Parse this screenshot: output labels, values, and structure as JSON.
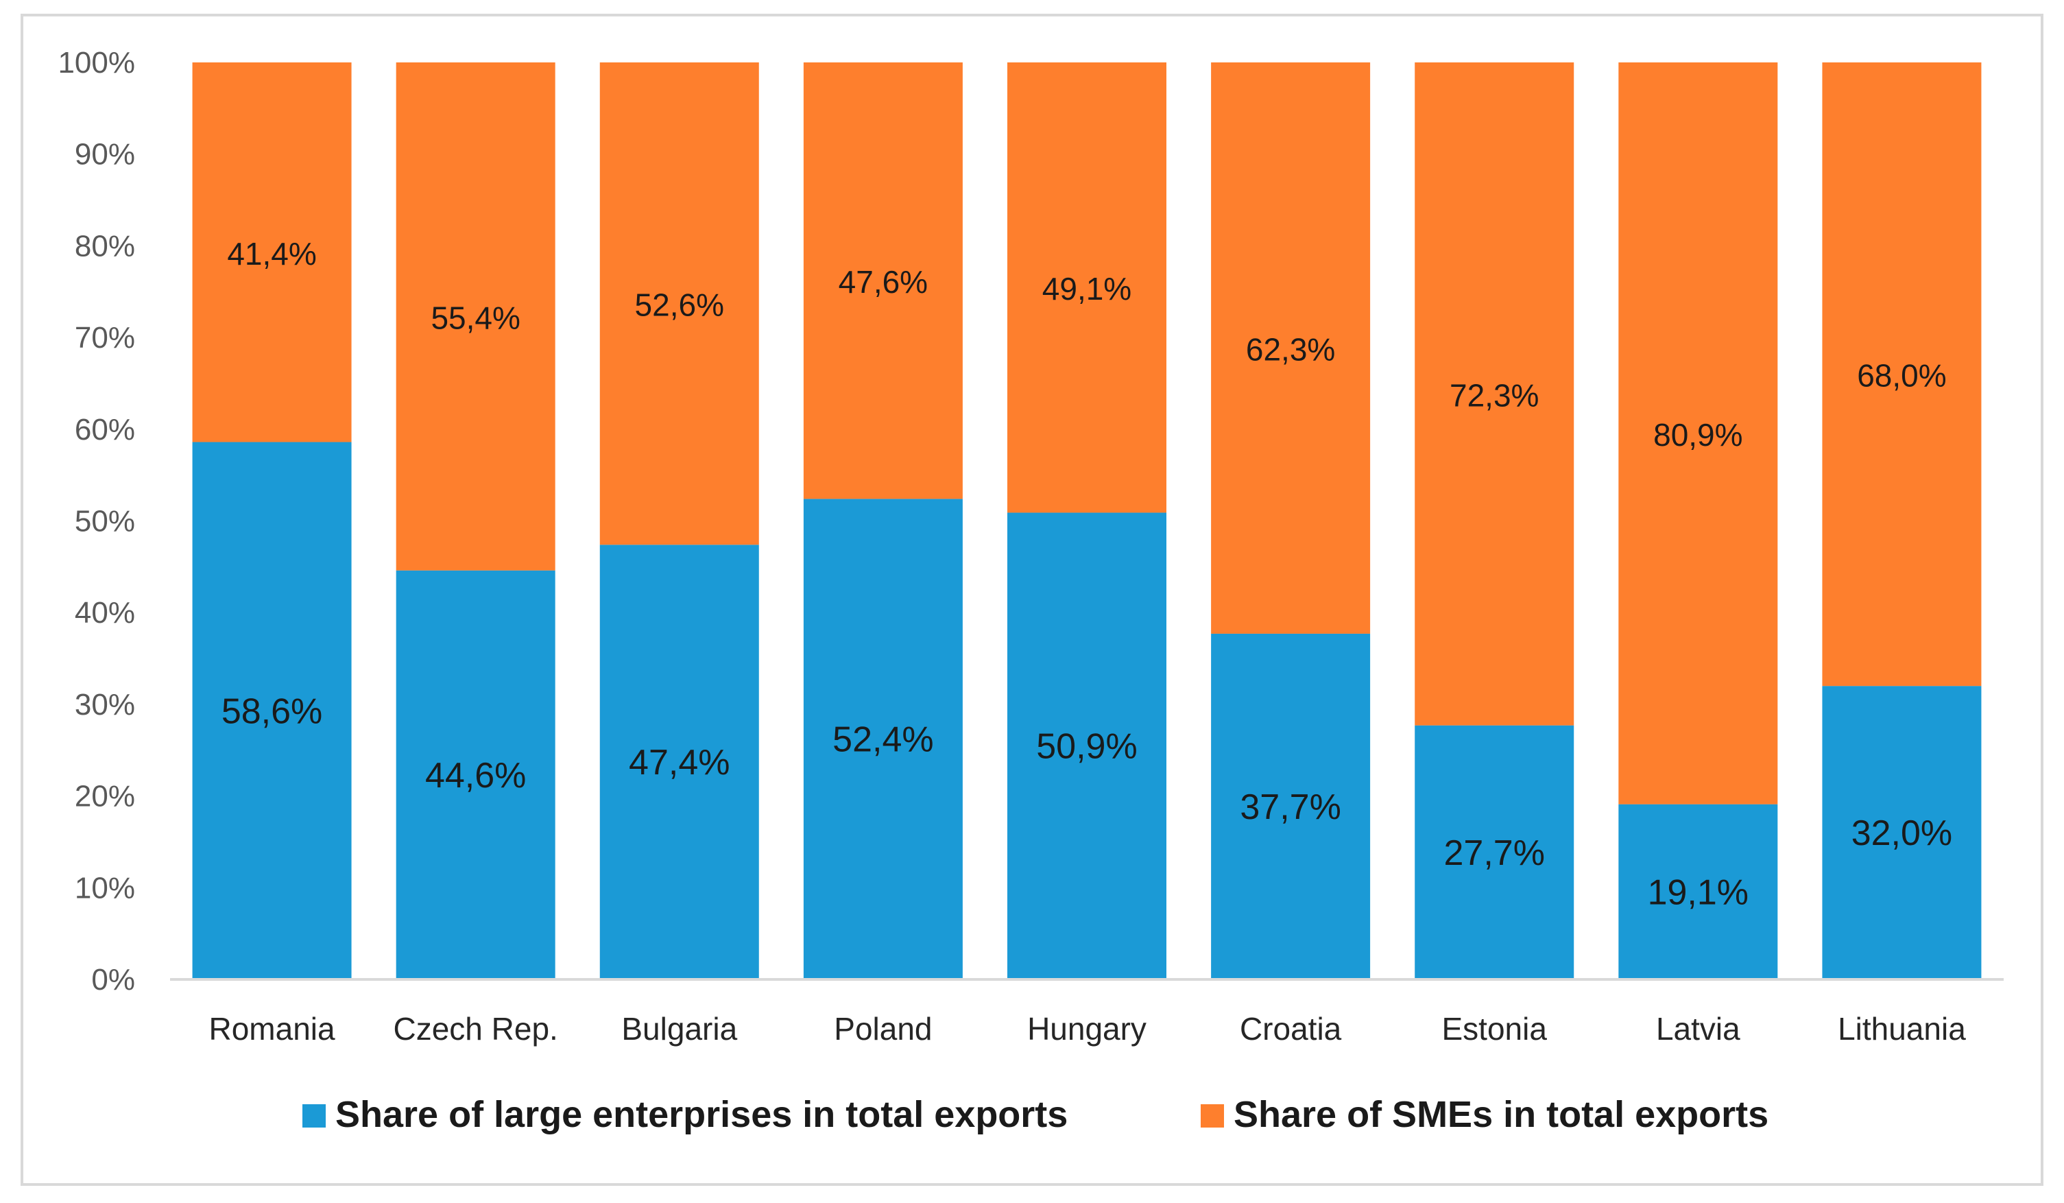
{
  "chart_data": {
    "type": "bar",
    "stacked": true,
    "categories": [
      "Romania",
      "Czech Rep.",
      "Bulgaria",
      "Poland",
      "Hungary",
      "Croatia",
      "Estonia",
      "Latvia",
      "Lithuania"
    ],
    "series": [
      {
        "name": "Share of large enterprises in total exports",
        "values": [
          58.6,
          44.6,
          47.4,
          52.4,
          50.9,
          37.7,
          27.7,
          19.1,
          32.0
        ],
        "labels": [
          "58,6%",
          "44,6%",
          "47,4%",
          "52,4%",
          "50,9%",
          "37,7%",
          "27,7%",
          "19,1%",
          "32,0%"
        ],
        "color": "#1b9ad6"
      },
      {
        "name": "Share of SMEs in total exports",
        "values": [
          41.4,
          55.4,
          52.6,
          47.6,
          49.1,
          62.3,
          72.3,
          80.9,
          68.0
        ],
        "labels": [
          "41,4%",
          "55,4%",
          "52,6%",
          "47,6%",
          "49,1%",
          "62,3%",
          "72,3%",
          "80,9%",
          "68,0%"
        ],
        "color": "#fe7f2d"
      }
    ],
    "ylim": [
      0,
      100
    ],
    "yticks": [
      "0%",
      "10%",
      "20%",
      "30%",
      "40%",
      "50%",
      "60%",
      "70%",
      "80%",
      "90%",
      "100%"
    ],
    "title": "",
    "xlabel": "",
    "ylabel": "",
    "grid": false,
    "legend_position": "bottom"
  }
}
